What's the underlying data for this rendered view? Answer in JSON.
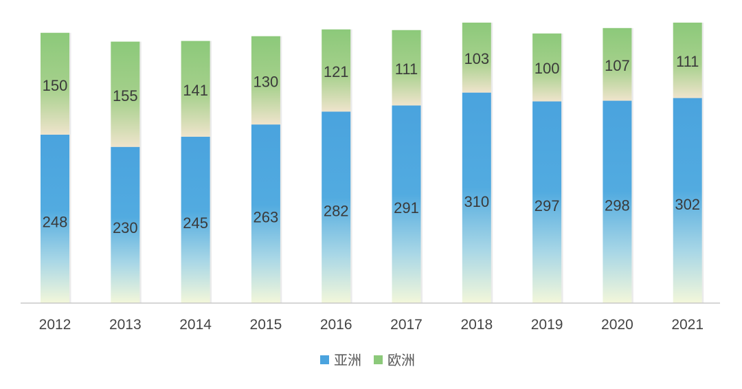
{
  "chart_data": {
    "type": "bar",
    "stacked": true,
    "categories": [
      "2012",
      "2013",
      "2014",
      "2015",
      "2016",
      "2017",
      "2018",
      "2019",
      "2020",
      "2021"
    ],
    "series": [
      {
        "name": "亚洲",
        "values": [
          248,
          230,
          245,
          263,
          282,
          291,
          310,
          297,
          298,
          302
        ],
        "color": "#4aa3de"
      },
      {
        "name": "欧洲",
        "values": [
          150,
          155,
          141,
          130,
          121,
          111,
          103,
          100,
          107,
          111
        ],
        "color": "#8cc97a"
      }
    ],
    "title": "",
    "xlabel": "",
    "ylabel": "",
    "ylim": [
      0,
      420
    ],
    "grid": false,
    "data_labels": true,
    "legend_position": "bottom-center"
  }
}
